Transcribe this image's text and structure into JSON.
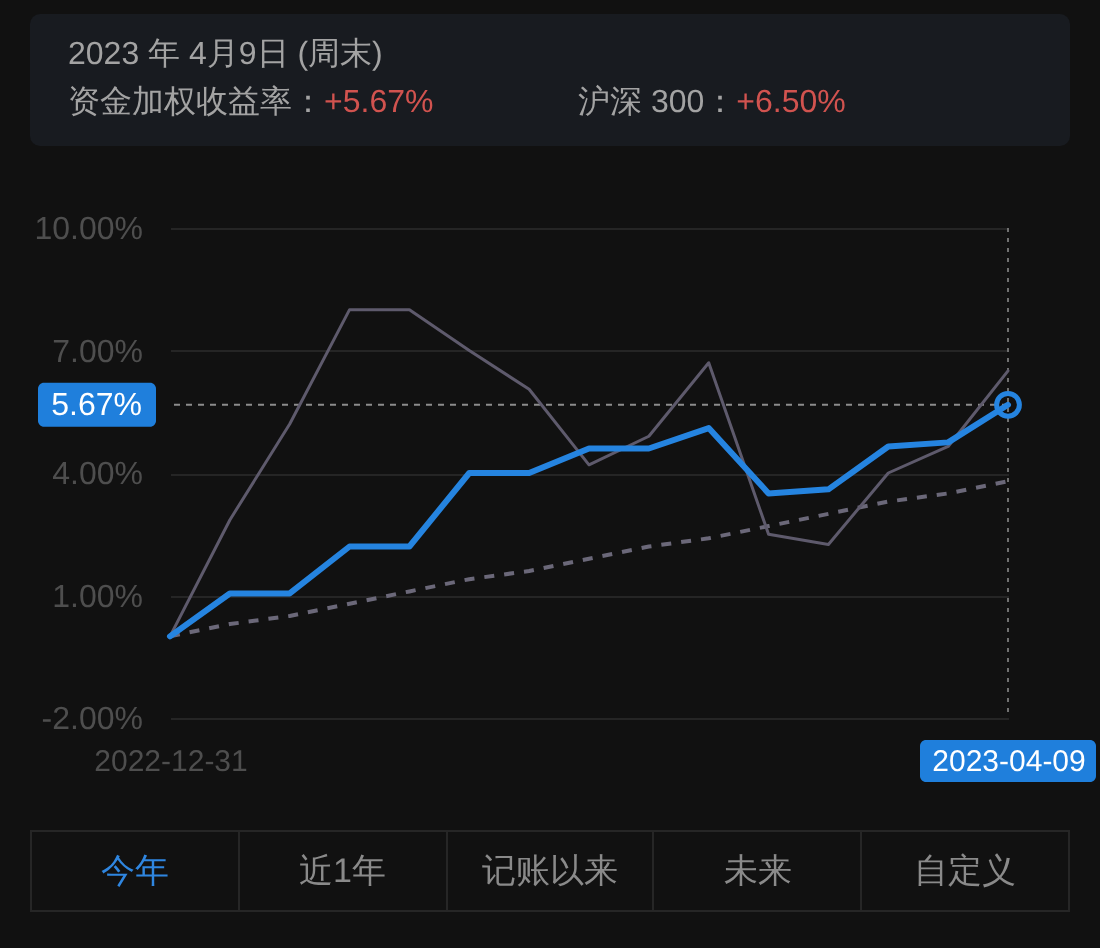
{
  "chart_data": {
    "type": "line",
    "title": "2023 年 4月9日 (周末)",
    "annotations": [
      "资金加权收益率：+5.67%",
      "沪深 300：+6.50%",
      "今年",
      "近1年",
      "记账以来",
      "未来",
      "自定义"
    ],
    "categories": [
      "2022-12-31",
      null,
      null,
      null,
      null,
      null,
      null,
      null,
      null,
      null,
      null,
      null,
      null,
      null,
      "2023-04-09"
    ],
    "series": [
      {
        "type": "line",
        "values": [
          0,
          0.3,
          0.5,
          0.8,
          1.1,
          1.4,
          1.6,
          1.9,
          2.2,
          2.4,
          2.7,
          3.0,
          3.3,
          3.5,
          3.8
        ],
        "color": "#6b6879",
        "line_style": "dashed"
      },
      {
        "type": "line",
        "color": "#5e5a6c",
        "values": [
          0,
          2.85,
          5.2,
          8.0,
          8.0,
          7.0,
          6.05,
          4.2,
          4.9,
          6.7,
          2.5,
          2.25,
          4.0,
          4.65,
          6.5
        ]
      },
      {
        "type": "line",
        "color": "#2584e0",
        "values": [
          0,
          1.05,
          1.05,
          2.2,
          2.2,
          4.0,
          4.0,
          4.6,
          4.6,
          5.1,
          3.5,
          3.6,
          4.65,
          4.75,
          5.67
        ]
      },
      {
        "type": "scatter",
        "values": [
          null,
          null,
          null,
          null,
          null,
          null,
          null,
          null,
          null,
          null,
          null,
          null,
          null,
          null,
          5.67
        ],
        "color": "#2584e0",
        "marker": "circle"
      }
    ],
    "ylim": [
      -2,
      10
    ],
    "yticks": [
      {
        "value": 10,
        "label": "10.00%"
      },
      {
        "value": 7,
        "label": "7.00%"
      },
      {
        "value": 4,
        "label": "4.00%"
      },
      {
        "value": 1,
        "label": "1.00%"
      },
      {
        "value": -2,
        "label": "-2.00%"
      }
    ],
    "grid": "y",
    "ref_lines": [
      {
        "axis": "y",
        "value": 5.67,
        "label": "5.67%",
        "line_style": "dashed",
        "color": "#8c8c8c"
      },
      {
        "axis": "x",
        "value": "2023-04-09",
        "line_style": "dotted",
        "color": "#707070"
      }
    ]
  }
}
